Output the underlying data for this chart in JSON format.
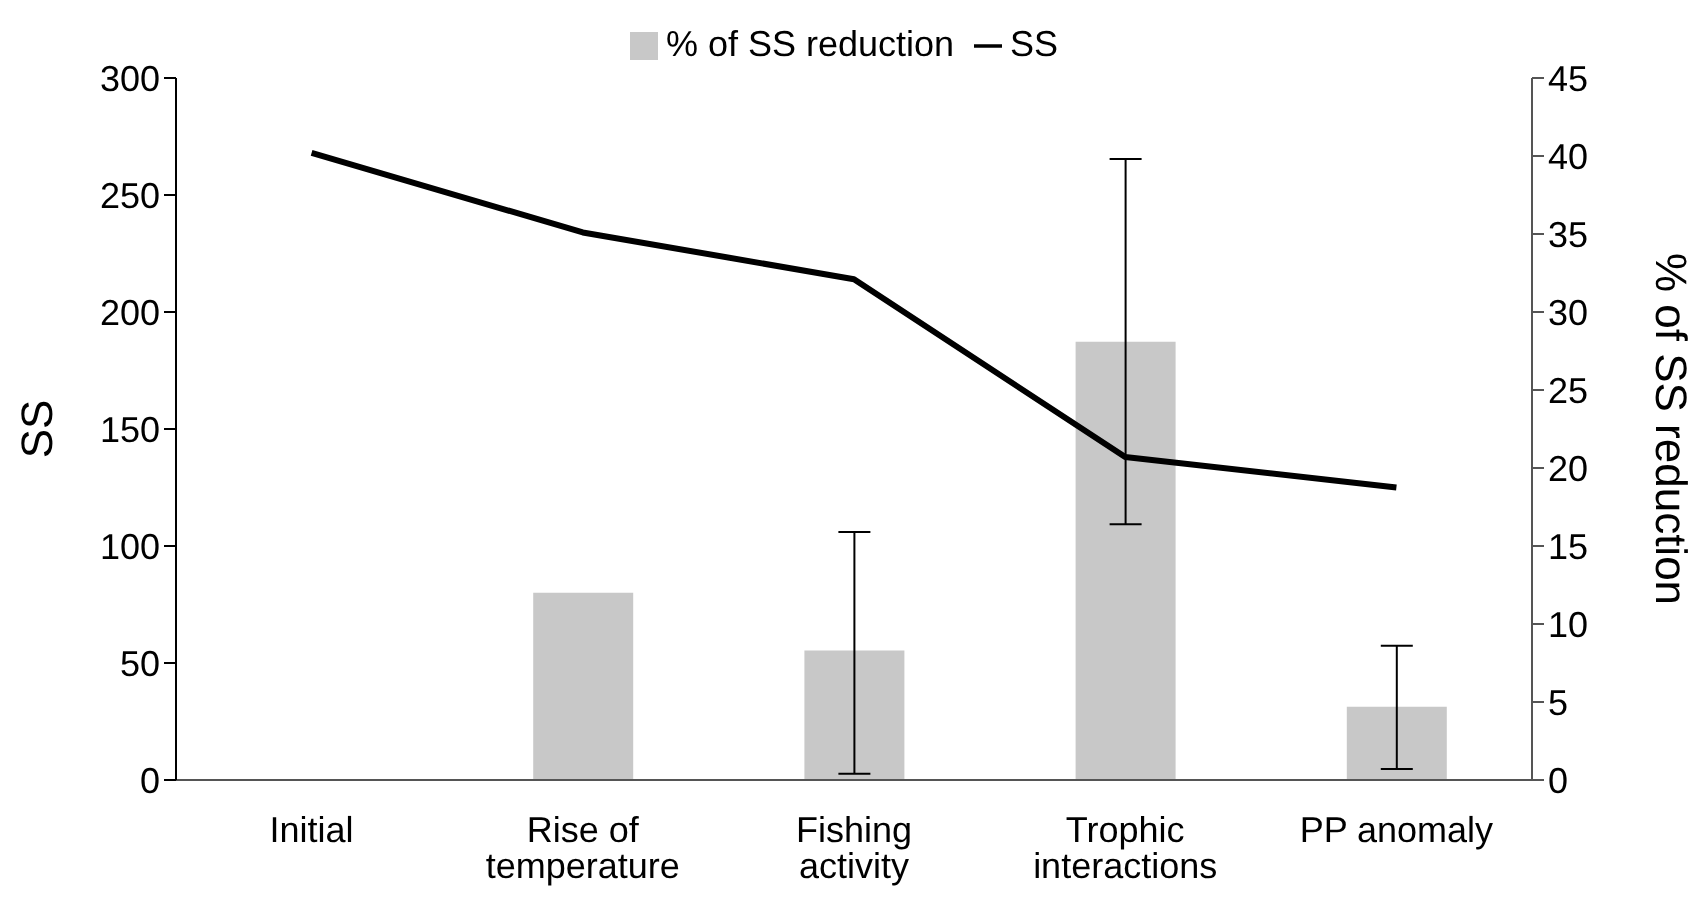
{
  "chart_data": {
    "type": "bar",
    "categories": [
      "Initial",
      "Rise of temperature",
      "Fishing activity",
      "Trophic interactions",
      "PP anomaly"
    ],
    "series": [
      {
        "name": "SS",
        "type": "line",
        "color": "#000000",
        "values": [
          268,
          234,
          214,
          138,
          125
        ]
      },
      {
        "name": "% of SS reduction",
        "axis": "y2",
        "color": "#c8c8c8",
        "values": [
          null,
          12,
          8.3,
          28.1,
          4.7
        ],
        "errors": [
          null,
          null,
          [
            0.4,
            15.9
          ],
          [
            16.4,
            39.8
          ],
          [
            0.7,
            8.6
          ]
        ]
      }
    ],
    "ylabel": "SS",
    "y2label": "% of SS reduction",
    "ylim": [
      0,
      300
    ],
    "yticks": [
      0,
      50,
      100,
      150,
      200,
      250,
      300
    ],
    "y2lim": [
      0,
      45
    ],
    "y2ticks": [
      0,
      5,
      10,
      15,
      20,
      25,
      30,
      35,
      40,
      45
    ],
    "legend": "top",
    "marker": "none",
    "grid": false
  }
}
